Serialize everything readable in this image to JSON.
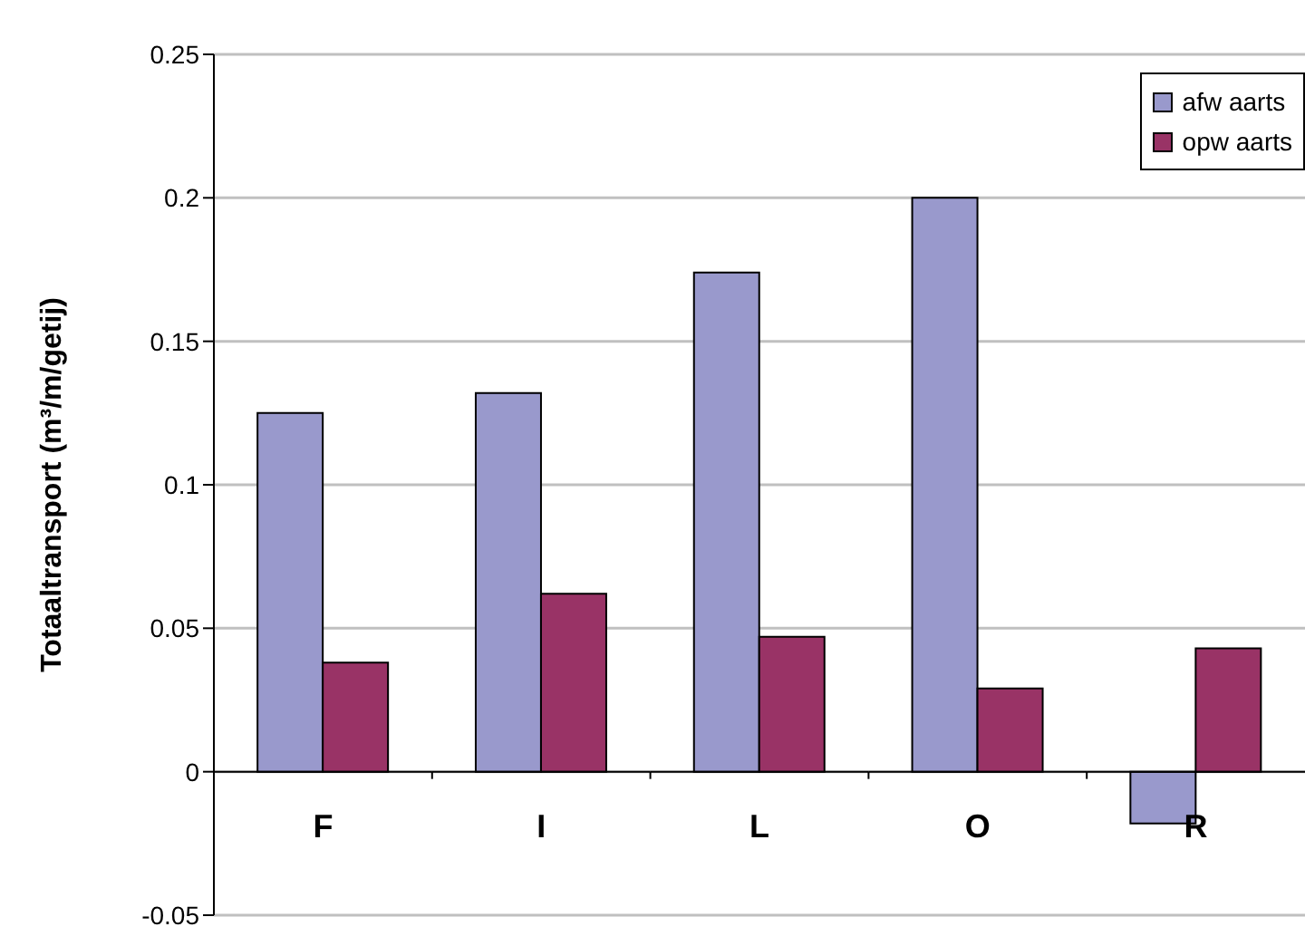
{
  "chart_data": {
    "type": "bar",
    "ylabel": "Totaaltransport (m³/m/getij)",
    "categories": [
      "F",
      "I",
      "L",
      "O",
      "R"
    ],
    "series": [
      {
        "name": "afw aarts",
        "color": "#9999cc",
        "values": [
          0.125,
          0.132,
          0.174,
          0.2,
          -0.018
        ]
      },
      {
        "name": "opw aarts",
        "color": "#993366",
        "values": [
          0.038,
          0.062,
          0.047,
          0.029,
          0.043
        ]
      }
    ],
    "ylim": [
      -0.05,
      0.25
    ],
    "yticks": [
      -0.05,
      0,
      0.05,
      0.1,
      0.15,
      0.2,
      0.25
    ],
    "grid": "y",
    "legend": "top right"
  }
}
